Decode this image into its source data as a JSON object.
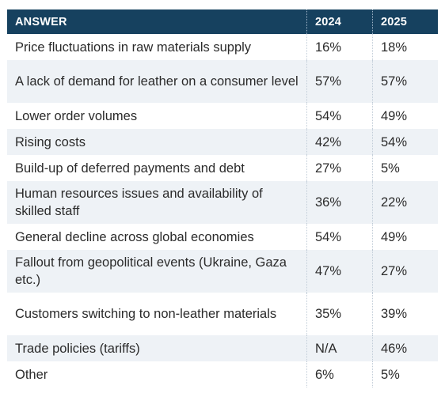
{
  "table": {
    "headers": {
      "answer": "ANSWER",
      "y2024": "2024",
      "y2025": "2025"
    },
    "rows": [
      {
        "answer": "Price fluctuations in raw materials supply",
        "y2024": "16%",
        "y2025": "18%"
      },
      {
        "answer": "A lack of demand for leather on a consumer level",
        "y2024": "57%",
        "y2025": "57%"
      },
      {
        "answer": "Lower order volumes",
        "y2024": "54%",
        "y2025": "49%"
      },
      {
        "answer": "Rising costs",
        "y2024": "42%",
        "y2025": "54%"
      },
      {
        "answer": "Build-up of deferred payments and debt",
        "y2024": "27%",
        "y2025": "5%"
      },
      {
        "answer": "Human resources issues and availability of skilled staff",
        "y2024": "36%",
        "y2025": "22%"
      },
      {
        "answer": "General decline across global economies",
        "y2024": "54%",
        "y2025": "49%"
      },
      {
        "answer": "Fallout from geopolitical events (Ukraine, Gaza etc.)",
        "y2024": "47%",
        "y2025": "27%"
      },
      {
        "answer": "Customers switching to non-leather materials",
        "y2024": "35%",
        "y2025": "39%"
      },
      {
        "answer": "Trade policies (tariffs)",
        "y2024": "N/A",
        "y2025": "46%"
      },
      {
        "answer": "Other",
        "y2024": "6%",
        "y2025": "5%"
      }
    ]
  },
  "colors": {
    "header_background": "#16415f",
    "header_text": "#ffffff",
    "stripe_background": "#eef2f6",
    "body_text": "#2b2b2b"
  }
}
